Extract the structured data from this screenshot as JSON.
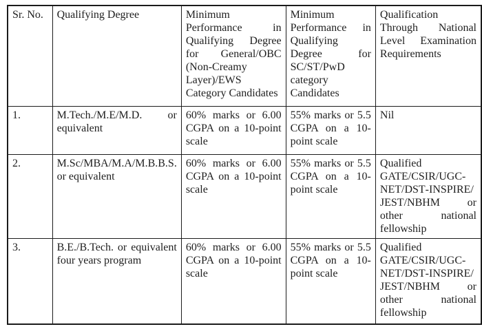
{
  "page": {
    "background": "#ffffff",
    "text_color": "#1e1e1e",
    "border_color": "#1a1a1a"
  },
  "table": {
    "columns": [
      {
        "label": "Sr. No."
      },
      {
        "label": "Qualifying Degree"
      },
      {
        "label": "Minimum Performance in Qualifying Degree for General/OBC (Non‑Creamy Layer)/EWS Category Candidates"
      },
      {
        "label": "Minimum Performance in Qualifying Degree for SC/ST/PwD category Candidates"
      },
      {
        "label": "Qualification Through National Level Examination Requirements"
      }
    ],
    "rows": [
      {
        "cells": [
          "1.",
          "M.Tech./M.E/M.D. or equivalent",
          "60% marks or 6.00 CGPA on a 10-point scale",
          "55% marks or 5.5 CGPA on a 10-point scale",
          "Nil"
        ]
      },
      {
        "cells": [
          "2.",
          "M.Sc/MBA/M.A/M.B.B.S. or equivalent",
          "60% marks or 6.00 CGPA on a 10-point scale",
          "55% marks or 5.5 CGPA on a 10-point scale",
          "Qualified GATE/CSIR/UGC-NET/DST‑INSPIRE/​JEST/NBHM or other national fellowship"
        ]
      },
      {
        "cells": [
          "3.",
          "B.E./B.Tech. or equivalent four years program",
          "60% marks or 6.00 CGPA on a 10-point scale",
          "55% marks or 5.5 CGPA on a 10-point scale",
          "Qualified GATE/CSIR/UGC-NET/DST‑INSPIRE/​JEST/NBHM or other national fellowship"
        ]
      }
    ]
  }
}
